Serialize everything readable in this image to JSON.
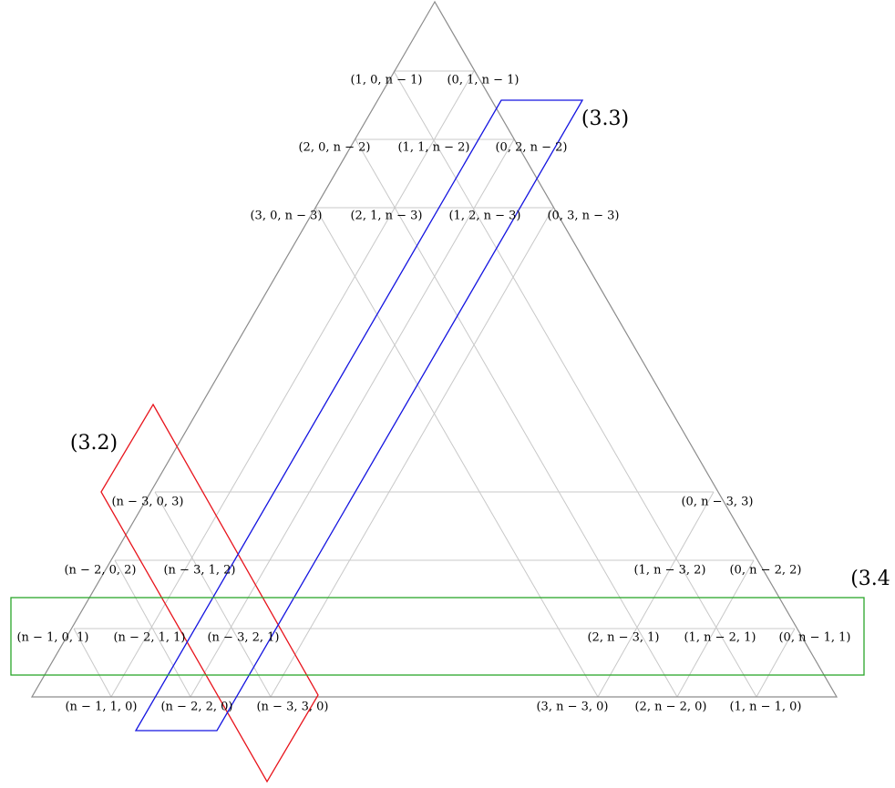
{
  "colors": {
    "outer": "#8c8c8c",
    "grid": "#c8c8c8",
    "region_3_2": "#e8141c",
    "region_3_3": "#1414e0",
    "region_3_4": "#2aa62a"
  },
  "region_labels": {
    "r32": "(3.2)",
    "r33": "(3.3)",
    "r34": "(3.4"
  },
  "nodes": {
    "t1a": "(1, 0, n − 1)",
    "t1b": "(0, 1, n − 1)",
    "t2a": "(2, 0, n − 2)",
    "t2b": "(1, 1, n − 2)",
    "t2c": "(0, 2, n − 2)",
    "t3a": "(3, 0, n − 3)",
    "t3b": "(2, 1, n − 3)",
    "t3c": "(1, 2, n − 3)",
    "t3d": "(0, 3, n − 3)",
    "l3a": "(n − 3, 0, 3)",
    "r3a": "(0, n − 3, 3)",
    "l2a": "(n − 2, 0, 2)",
    "l2b": "(n − 3, 1, 2)",
    "r2a": "(1, n − 3, 2)",
    "r2b": "(0, n − 2, 2)",
    "l1a": "(n − 1, 0, 1)",
    "l1b": "(n − 2, 1, 1)",
    "l1c": "(n − 3, 2, 1)",
    "r1a": "(2, n − 3, 1)",
    "r1b": "(1, n − 2, 1)",
    "r1c": "(0, n − 1, 1)",
    "l0a": "(n − 1, 1, 0)",
    "l0b": "(n − 2, 2, 0)",
    "l0c": "(n − 3, 3, 0)",
    "r0a": "(3, n − 3, 0)",
    "r0b": "(2, n − 2, 0)",
    "r0c": "(1, n − 1, 0)"
  }
}
